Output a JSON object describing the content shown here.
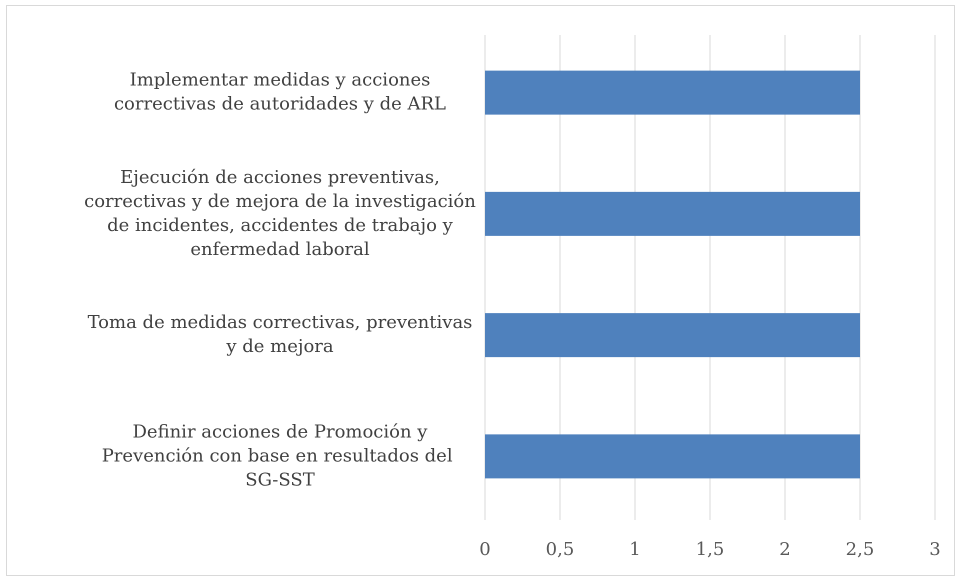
{
  "chart_data": {
    "type": "barh",
    "categories": [
      "Implementar medidas y acciones correctivas de autoridades y de ARL",
      "Ejecución de acciones preventivas, correctivas y de mejora de la investigación de incidentes, accidentes de trabajo y enfermedad laboral",
      "Toma de medidas correctivas, preventivas y de mejora",
      "Definir acciones de Promoción y Prevención con base en resultados del  SG-SST"
    ],
    "values": [
      2.5,
      2.5,
      2.5,
      2.5
    ],
    "color": "#4f81bd",
    "xlim": [
      0,
      3
    ],
    "xticks": [
      0,
      {
        "value": 0.5,
        "label": "0,5"
      },
      1,
      {
        "value": 1.5,
        "label": "1,5"
      },
      2,
      {
        "value": 2.5,
        "label": "2,5"
      },
      3
    ],
    "grid": true
  }
}
